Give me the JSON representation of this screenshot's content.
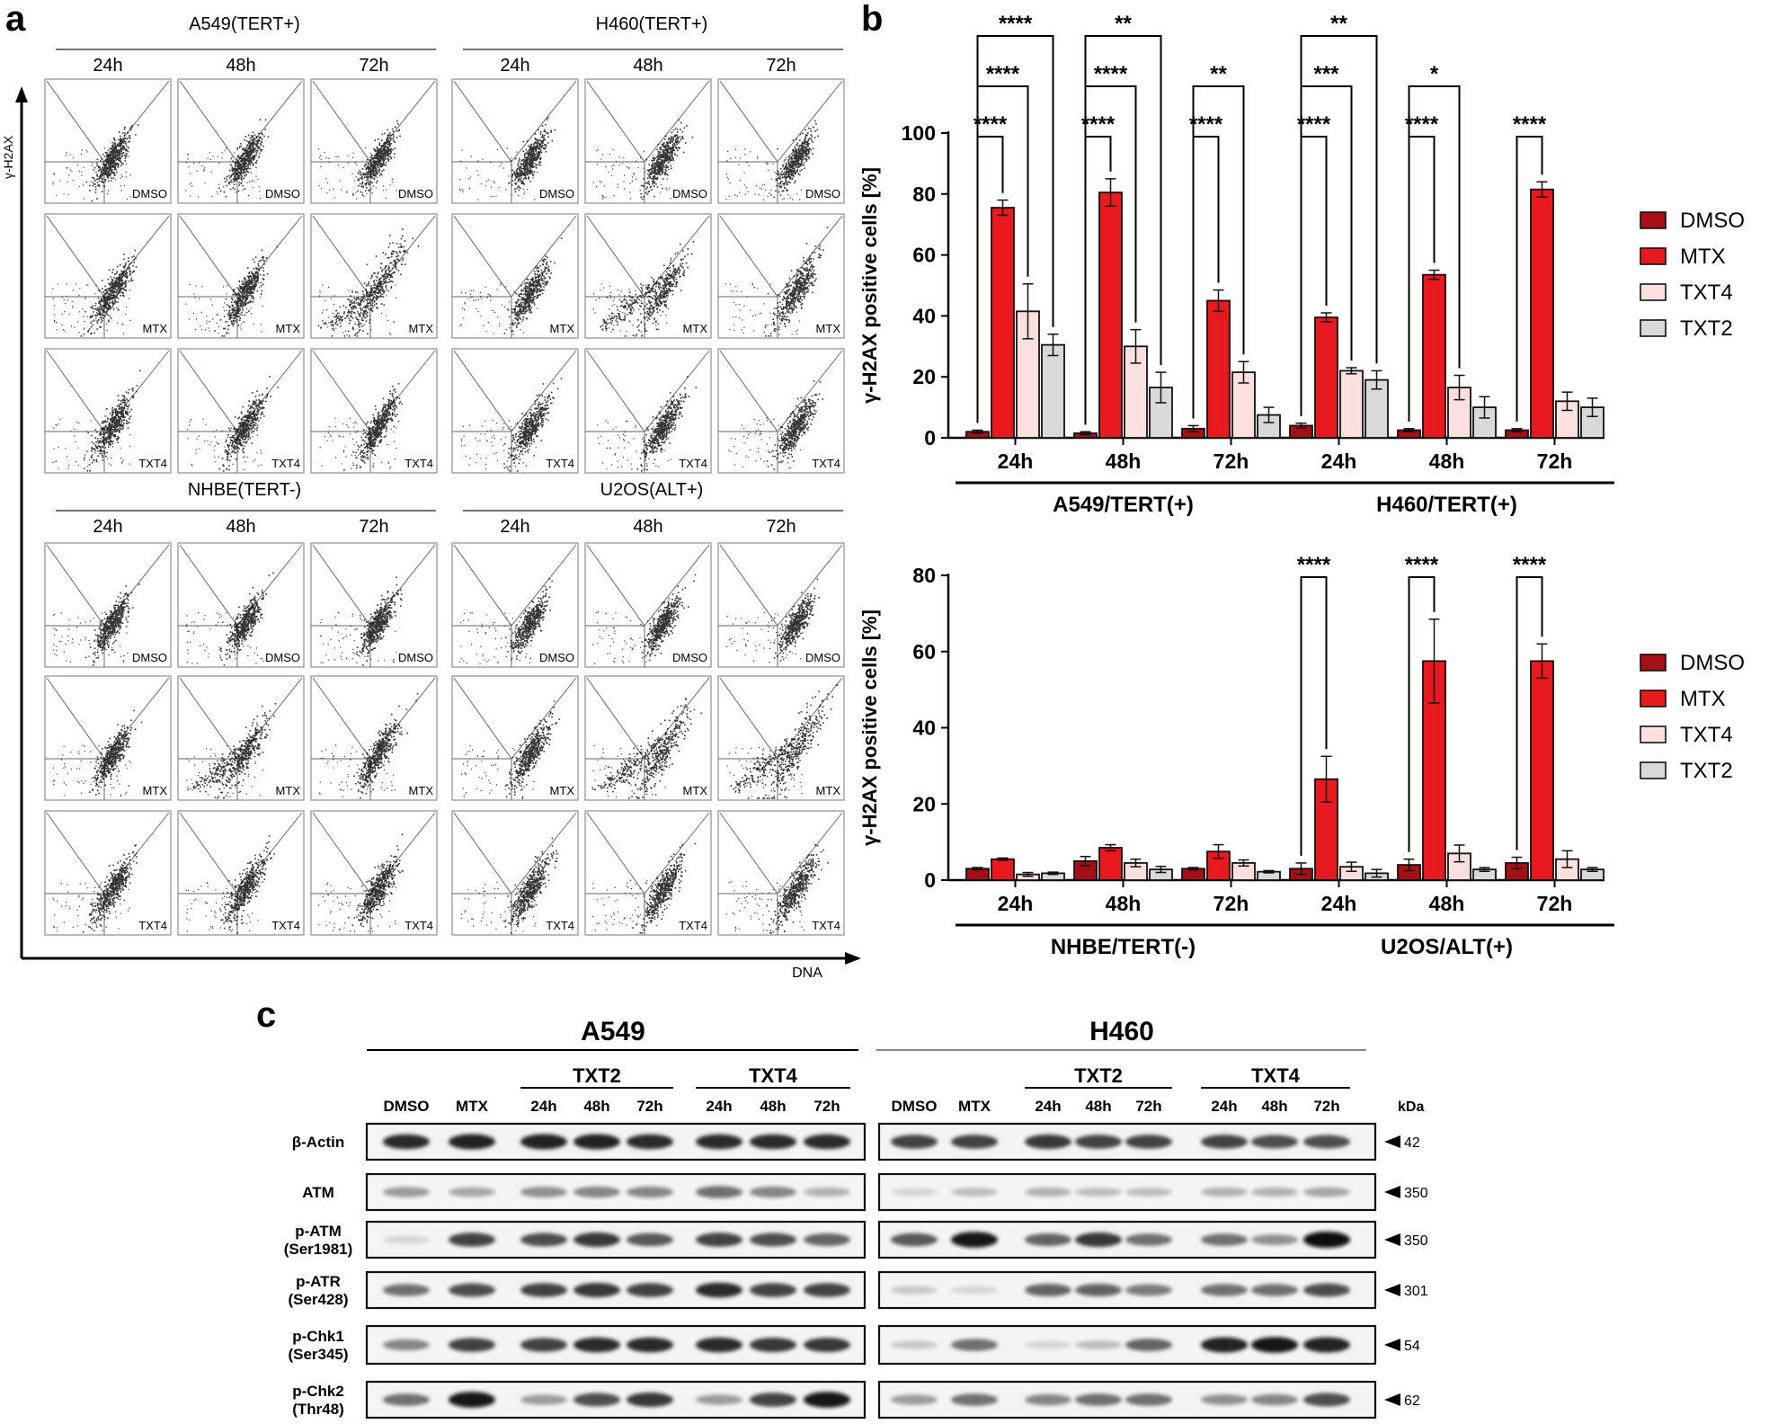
{
  "panel_labels": {
    "a": "a",
    "b": "b",
    "c": "c"
  },
  "panel_a": {
    "y_axis_label": "γ-H2AX",
    "x_axis_label": "DNA",
    "time_labels": [
      "24h",
      "48h",
      "72h"
    ],
    "blocks": [
      {
        "title": "A549(TERT+)",
        "rows": [
          "DMSO",
          "MTX",
          "TXT4"
        ]
      },
      {
        "title": "H460(TERT+)",
        "rows": [
          "DMSO",
          "MTX",
          "TXT4"
        ]
      },
      {
        "title": "NHBE(TERT-)",
        "rows": [
          "DMSO",
          "MTX",
          "TXT4"
        ]
      },
      {
        "title": "U2OS(ALT+)",
        "rows": [
          "DMSO",
          "MTX",
          "TXT4"
        ]
      }
    ]
  },
  "chart_data": [
    {
      "type": "bar",
      "title": "",
      "ylabel": "γ-H2AX positive cells [%]",
      "ylim": [
        0,
        100
      ],
      "yticks": [
        0,
        20,
        40,
        60,
        80,
        100
      ],
      "categories": [
        "24h",
        "48h",
        "72h",
        "24h",
        "48h",
        "72h"
      ],
      "groups": [
        {
          "label": "A549/TERT(+)",
          "categories": [
            0,
            1,
            2
          ]
        },
        {
          "label": "H460/TERT(+)",
          "categories": [
            3,
            4,
            5
          ]
        }
      ],
      "legend": [
        "DMSO",
        "MTX",
        "TXT4",
        "TXT2"
      ],
      "series": [
        {
          "name": "DMSO",
          "color": "#a50f15",
          "values": [
            2,
            1.5,
            3,
            4,
            2.5,
            2.5
          ],
          "errors": [
            0.5,
            0.5,
            1,
            0.8,
            0.5,
            0.5
          ]
        },
        {
          "name": "MTX",
          "color": "#e8191f",
          "values": [
            75.5,
            80.5,
            45,
            39.5,
            53.5,
            81.5
          ],
          "errors": [
            2.5,
            4.5,
            3.5,
            1.5,
            1.5,
            2.5
          ]
        },
        {
          "name": "TXT4",
          "color": "#fbe0e0",
          "values": [
            41.5,
            30,
            21.5,
            22,
            16.5,
            12
          ],
          "errors": [
            9,
            5.5,
            3.5,
            1,
            4,
            3
          ]
        },
        {
          "name": "TXT2",
          "color": "#d9d9d9",
          "values": [
            30.5,
            16.5,
            7.5,
            19,
            10,
            10
          ],
          "errors": [
            3.5,
            5,
            2.5,
            3,
            3.5,
            3
          ]
        }
      ],
      "significance": [
        {
          "from": [
            0,
            0
          ],
          "to": [
            0,
            1
          ],
          "label": "****",
          "level": 0
        },
        {
          "from": [
            0,
            0
          ],
          "to": [
            0,
            2
          ],
          "label": "****",
          "level": 1
        },
        {
          "from": [
            0,
            0
          ],
          "to": [
            0,
            3
          ],
          "label": "****",
          "level": 2
        },
        {
          "from": [
            1,
            0
          ],
          "to": [
            1,
            1
          ],
          "label": "****",
          "level": 0
        },
        {
          "from": [
            1,
            0
          ],
          "to": [
            1,
            2
          ],
          "label": "****",
          "level": 1
        },
        {
          "from": [
            1,
            0
          ],
          "to": [
            1,
            3
          ],
          "label": "**",
          "level": 2
        },
        {
          "from": [
            2,
            0
          ],
          "to": [
            2,
            1
          ],
          "label": "****",
          "level": 0
        },
        {
          "from": [
            2,
            0
          ],
          "to": [
            2,
            2
          ],
          "label": "**",
          "level": 1
        },
        {
          "from": [
            3,
            0
          ],
          "to": [
            3,
            1
          ],
          "label": "****",
          "level": 0
        },
        {
          "from": [
            3,
            0
          ],
          "to": [
            3,
            2
          ],
          "label": "***",
          "level": 1
        },
        {
          "from": [
            3,
            0
          ],
          "to": [
            3,
            3
          ],
          "label": "**",
          "level": 2
        },
        {
          "from": [
            4,
            0
          ],
          "to": [
            4,
            1
          ],
          "label": "****",
          "level": 0
        },
        {
          "from": [
            4,
            0
          ],
          "to": [
            4,
            2
          ],
          "label": "*",
          "level": 1
        },
        {
          "from": [
            5,
            0
          ],
          "to": [
            5,
            1
          ],
          "label": "****",
          "level": 0
        }
      ]
    },
    {
      "type": "bar",
      "title": "",
      "ylabel": "γ-H2AX positive cells [%]",
      "ylim": [
        0,
        80
      ],
      "yticks": [
        0,
        20,
        40,
        60,
        80
      ],
      "categories": [
        "24h",
        "48h",
        "72h",
        "24h",
        "48h",
        "72h"
      ],
      "groups": [
        {
          "label": "NHBE/TERT(-)",
          "categories": [
            0,
            1,
            2
          ]
        },
        {
          "label": "U2OS/ALT(+)",
          "categories": [
            3,
            4,
            5
          ]
        }
      ],
      "legend": [
        "DMSO",
        "MTX",
        "TXT4",
        "TXT2"
      ],
      "series": [
        {
          "name": "DMSO",
          "color": "#a50f15",
          "values": [
            3,
            5,
            3,
            3,
            4,
            4.5
          ],
          "errors": [
            0.3,
            1.2,
            0.3,
            1.5,
            1.5,
            1.5
          ]
        },
        {
          "name": "MTX",
          "color": "#e8191f",
          "values": [
            5.5,
            8.5,
            7.5,
            26.5,
            57.5,
            57.5
          ],
          "errors": [
            0.3,
            0.8,
            1.8,
            6,
            11,
            4.5
          ]
        },
        {
          "name": "TXT4",
          "color": "#fbe0e0",
          "values": [
            1.5,
            4.5,
            4.5,
            3.5,
            7,
            5.5
          ],
          "errors": [
            0.5,
            1,
            0.8,
            1.2,
            2.2,
            2.2
          ]
        },
        {
          "name": "TXT2",
          "color": "#d9d9d9",
          "values": [
            1.8,
            2.8,
            2.2,
            1.8,
            2.8,
            2.8
          ],
          "errors": [
            0.3,
            0.8,
            0.3,
            1,
            0.5,
            0.5
          ]
        }
      ],
      "significance": [
        {
          "from": [
            3,
            0
          ],
          "to": [
            3,
            1
          ],
          "label": "****",
          "level": 0
        },
        {
          "from": [
            4,
            0
          ],
          "to": [
            4,
            1
          ],
          "label": "****",
          "level": 0
        },
        {
          "from": [
            5,
            0
          ],
          "to": [
            5,
            1
          ],
          "label": "****",
          "level": 0
        }
      ]
    }
  ],
  "panel_c": {
    "cell_lines": [
      "A549",
      "H460"
    ],
    "groups": [
      "TXT2",
      "TXT4"
    ],
    "lane_labels": [
      "DMSO",
      "MTX",
      "24h",
      "48h",
      "72h",
      "24h",
      "48h",
      "72h"
    ],
    "kda_label": "kDa",
    "rows": [
      {
        "label1": "β-Actin",
        "label2": "",
        "kda": "42"
      },
      {
        "label1": "ATM",
        "label2": "",
        "kda": "350"
      },
      {
        "label1": "p-ATM",
        "label2": "(Ser1981)",
        "kda": "350"
      },
      {
        "label1": "p-ATR",
        "label2": "(Ser428)",
        "kda": "301"
      },
      {
        "label1": "p-Chk1",
        "label2": "(Ser345)",
        "kda": "54"
      },
      {
        "label1": "p-Chk2",
        "label2": "(Thr48)",
        "kda": "62"
      }
    ],
    "band_intensity": [
      [
        [
          0.85,
          0.9,
          0.9,
          0.9,
          0.85,
          0.85,
          0.85,
          0.85
        ],
        [
          0.75,
          0.75,
          0.8,
          0.75,
          0.75,
          0.75,
          0.7,
          0.7
        ]
      ],
      [
        [
          0.35,
          0.3,
          0.4,
          0.45,
          0.45,
          0.55,
          0.45,
          0.25
        ],
        [
          0.1,
          0.2,
          0.25,
          0.2,
          0.2,
          0.25,
          0.25,
          0.3
        ]
      ],
      [
        [
          0.1,
          0.75,
          0.7,
          0.8,
          0.65,
          0.75,
          0.7,
          0.6
        ],
        [
          0.65,
          0.95,
          0.6,
          0.8,
          0.55,
          0.55,
          0.4,
          1.0
        ]
      ],
      [
        [
          0.55,
          0.7,
          0.75,
          0.8,
          0.75,
          0.85,
          0.75,
          0.75
        ],
        [
          0.15,
          0.1,
          0.6,
          0.6,
          0.5,
          0.55,
          0.55,
          0.7
        ]
      ],
      [
        [
          0.45,
          0.75,
          0.75,
          0.85,
          0.85,
          0.85,
          0.8,
          0.8
        ],
        [
          0.15,
          0.55,
          0.1,
          0.2,
          0.6,
          0.9,
          0.95,
          0.9
        ]
      ],
      [
        [
          0.55,
          0.95,
          0.35,
          0.7,
          0.8,
          0.35,
          0.75,
          0.95
        ],
        [
          0.35,
          0.55,
          0.45,
          0.55,
          0.55,
          0.4,
          0.45,
          0.7
        ]
      ]
    ]
  }
}
